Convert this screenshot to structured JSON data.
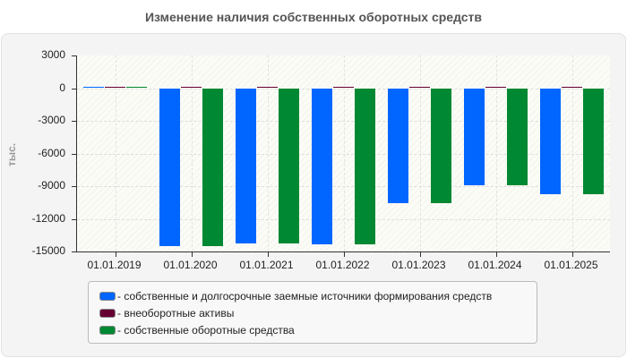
{
  "chart_data": {
    "type": "bar",
    "title": "Изменение наличия собственных оборотных средств",
    "xlabel": "",
    "ylabel": "тыс.",
    "categories": [
      "01.01.2019",
      "01.01.2020",
      "01.01.2021",
      "01.01.2022",
      "01.01.2023",
      "01.01.2024",
      "01.01.2025"
    ],
    "series": [
      {
        "name": "- собственные и долгосрочные заемные источники формирования средств",
        "color": "#0066ff",
        "values": [
          150,
          -14540,
          -14270,
          -14350,
          -10600,
          -8930,
          -9780
        ]
      },
      {
        "name": "- внеоборотные активы",
        "color": "#660033",
        "values": [
          150,
          150,
          150,
          150,
          150,
          150,
          150
        ]
      },
      {
        "name": "- собственные оборотные средства",
        "color": "#008833",
        "values": [
          150,
          -14540,
          -14270,
          -14350,
          -10600,
          -8930,
          -9780
        ]
      }
    ],
    "ylim": [
      -15000,
      3000
    ],
    "yticks": [
      3000,
      0,
      -3000,
      -6000,
      -9000,
      -12000,
      -15000
    ],
    "grid": true,
    "legend_position": "bottom"
  },
  "ui": {
    "title": "Изменение наличия собственных оборотных средств",
    "y_axis_title": "тыс.",
    "ytick_labels": [
      "3000",
      "0",
      "-3000",
      "-6000",
      "-9000",
      "-12000",
      "-15000"
    ],
    "legend": [
      "- собственные и долгосрочные заемные источники формирования средств",
      "- внеоборотные активы",
      "- собственные оборотные средства"
    ]
  }
}
